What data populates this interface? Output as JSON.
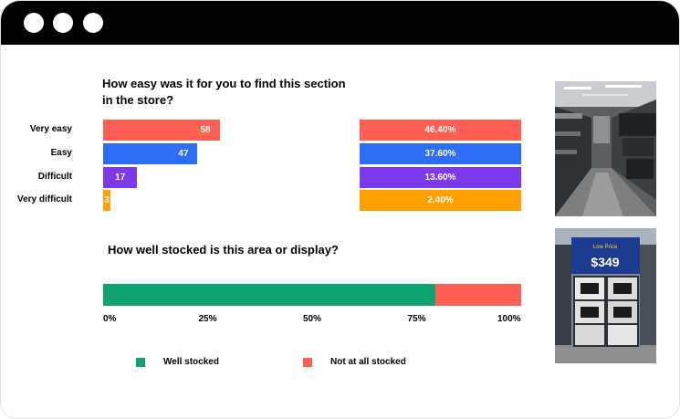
{
  "colors": {
    "very_easy": "#ff5f52",
    "easy": "#2e6df6",
    "difficult": "#7c3aed",
    "very_difficult": "#ffa000",
    "well_stocked": "#0ea371",
    "not_stocked": "#ff5f52"
  },
  "questions": {
    "find_section": "How easy was it for you to find this section in the store?",
    "stocked": "How well stocked is this area or display?"
  },
  "chart_data": [
    {
      "type": "bar",
      "orientation": "horizontal",
      "title": "How easy was it for you to find this section in the store?",
      "categories": [
        "Very easy",
        "Easy",
        "Difficult",
        "Very difficult"
      ],
      "values": [
        58,
        47,
        17,
        3
      ],
      "value_labels": [
        "58",
        "47",
        "17",
        "3"
      ],
      "percentages": [
        46.4,
        37.6,
        13.6,
        2.4
      ],
      "percentage_labels": [
        "46.40%",
        "37.60%",
        "13.60%",
        "2.40%"
      ],
      "xlim": [
        0,
        110
      ]
    },
    {
      "type": "bar",
      "orientation": "horizontal",
      "stacked": true,
      "normalized": true,
      "title": "How well stocked is this area or display?",
      "series": [
        {
          "name": "Well stocked",
          "value": 79.5
        },
        {
          "name": "Not at all stocked",
          "value": 20.5
        }
      ],
      "tick_labels": [
        "0%",
        "25%",
        "50%",
        "75%",
        "100%"
      ],
      "legend": "bottom"
    }
  ],
  "photos": [
    {
      "icon": "store-aisle-photo"
    },
    {
      "icon": "store-display-photo",
      "sign_text": "$349",
      "banner_text": "Low Price"
    }
  ]
}
